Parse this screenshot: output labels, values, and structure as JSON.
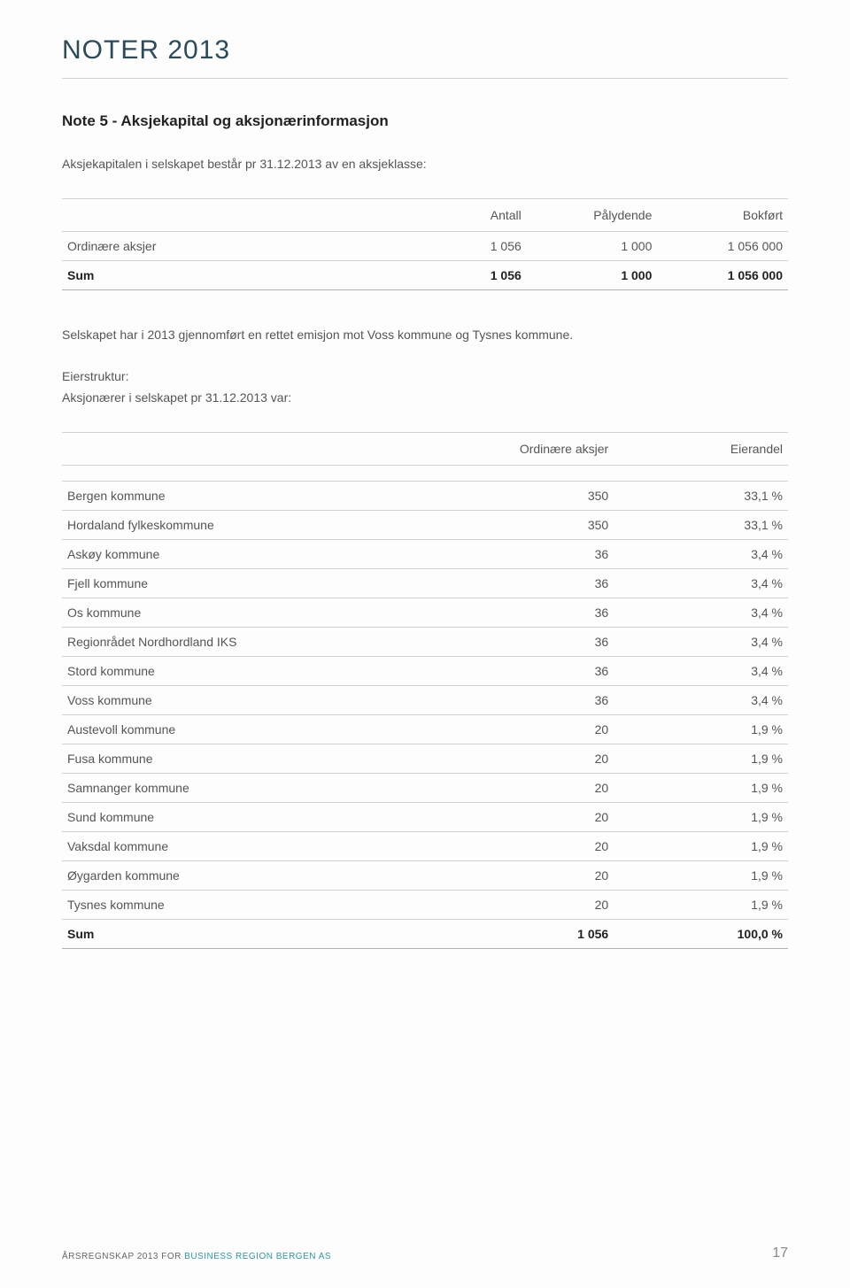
{
  "page_title": "NOTER 2013",
  "note_title": "Note 5 - Aksjekapital og aksjonærinformasjon",
  "intro_text": "Aksjekapitalen i selskapet består pr 31.12.2013 av en aksjeklasse:",
  "table1": {
    "headers": [
      "",
      "Antall",
      "Pålydende",
      "Bokført"
    ],
    "rows": [
      {
        "label": "Ordinære aksjer",
        "c1": "1 056",
        "c2": "1 000",
        "c3": "1 056 000"
      }
    ],
    "sum": {
      "label": "Sum",
      "c1": "1 056",
      "c2": "1 000",
      "c3": "1 056 000"
    }
  },
  "mid_text": "Selskapet har i 2013 gjennomført en rettet emisjon mot Voss kommune og Tysnes kommune.",
  "eierstruktur_label": "Eierstruktur:",
  "aksjonaerer_label": "Aksjonærer i selskapet pr 31.12.2013 var:",
  "table2": {
    "headers": [
      "",
      "Ordinære aksjer",
      "Eierandel"
    ],
    "rows": [
      {
        "label": "Bergen kommune",
        "c1": "350",
        "c2": "33,1 %"
      },
      {
        "label": "Hordaland fylkeskommune",
        "c1": "350",
        "c2": "33,1 %"
      },
      {
        "label": "Askøy kommune",
        "c1": "36",
        "c2": "3,4 %"
      },
      {
        "label": "Fjell kommune",
        "c1": "36",
        "c2": "3,4 %"
      },
      {
        "label": "Os kommune",
        "c1": "36",
        "c2": "3,4 %"
      },
      {
        "label": "Regionrådet Nordhordland IKS",
        "c1": "36",
        "c2": "3,4 %"
      },
      {
        "label": "Stord kommune",
        "c1": "36",
        "c2": "3,4 %"
      },
      {
        "label": "Voss kommune",
        "c1": "36",
        "c2": "3,4 %"
      },
      {
        "label": "Austevoll kommune",
        "c1": "20",
        "c2": "1,9 %"
      },
      {
        "label": "Fusa kommune",
        "c1": "20",
        "c2": "1,9 %"
      },
      {
        "label": "Samnanger kommune",
        "c1": "20",
        "c2": "1,9 %"
      },
      {
        "label": "Sund kommune",
        "c1": "20",
        "c2": "1,9 %"
      },
      {
        "label": "Vaksdal kommune",
        "c1": "20",
        "c2": "1,9 %"
      },
      {
        "label": "Øygarden kommune",
        "c1": "20",
        "c2": "1,9 %"
      },
      {
        "label": "Tysnes kommune",
        "c1": "20",
        "c2": "1,9 %"
      }
    ],
    "sum": {
      "label": "Sum",
      "c1": "1 056",
      "c2": "100,0 %"
    }
  },
  "footer_prefix": "ÅRSREGNSKAP 2013 FOR ",
  "footer_company": "BUSINESS REGION BERGEN AS",
  "page_number": "17"
}
